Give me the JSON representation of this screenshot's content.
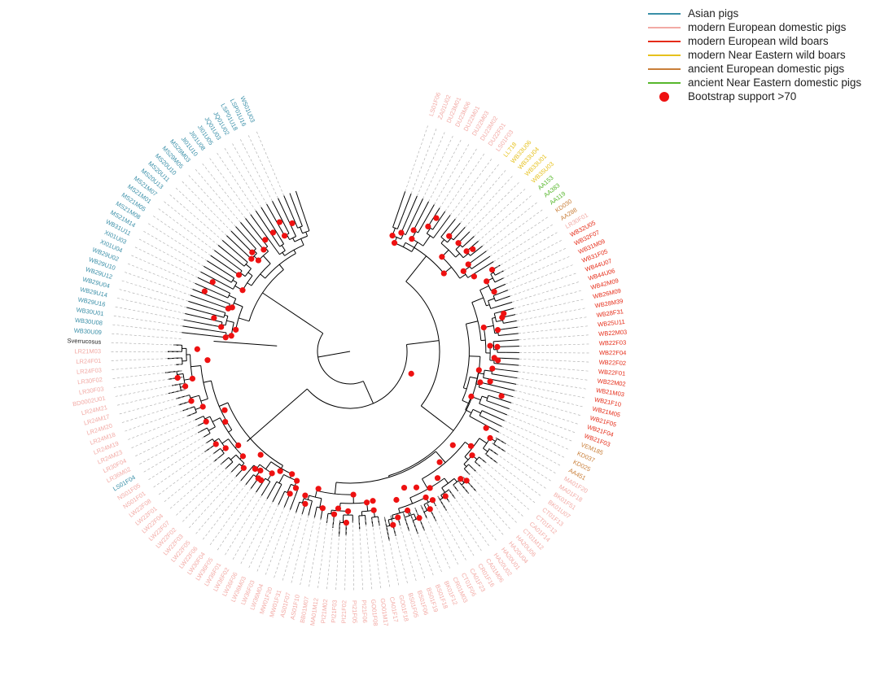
{
  "colors": {
    "asian": "#3a8fa8",
    "mod_eu_dom": "#f2aaa5",
    "mod_eu_wild": "#e52b17",
    "mod_ne_wild": "#e6c11d",
    "anc_eu_dom": "#c97f3a",
    "anc_ne_dom": "#57b72c",
    "outgroup": "#222222",
    "node": "#ee1111"
  },
  "legend": [
    {
      "label": "Asian pigs",
      "group": "asian",
      "kind": "line"
    },
    {
      "label": "modern European domestic pigs",
      "group": "mod_eu_dom",
      "kind": "line"
    },
    {
      "label": "modern European wild boars",
      "group": "mod_eu_wild",
      "kind": "line"
    },
    {
      "label": "modern Near Eastern wild boars",
      "group": "mod_ne_wild",
      "kind": "line"
    },
    {
      "label": "ancient European domestic pigs",
      "group": "anc_eu_dom",
      "kind": "line"
    },
    {
      "label": "ancient Near Eastern domestic pigs",
      "group": "anc_ne_dom",
      "kind": "line"
    },
    {
      "label": "Bootstrap support >70",
      "group": "node",
      "kind": "dot"
    }
  ],
  "leaves": [
    {
      "name": "LS01F06",
      "group": "mod_eu_dom"
    },
    {
      "name": "ZA01U02",
      "group": "mod_eu_dom"
    },
    {
      "name": "DU23M01",
      "group": "mod_eu_dom"
    },
    {
      "name": "DU23M06",
      "group": "mod_eu_dom"
    },
    {
      "name": "DU22M01",
      "group": "mod_eu_dom"
    },
    {
      "name": "DU22M03",
      "group": "mod_eu_dom"
    },
    {
      "name": "DU23M02",
      "group": "mod_eu_dom"
    },
    {
      "name": "DU22F01",
      "group": "mod_eu_dom"
    },
    {
      "name": "LS01F03",
      "group": "mod_eu_dom"
    },
    {
      "name": "LL718",
      "group": "mod_ne_wild"
    },
    {
      "name": "WB33U06",
      "group": "mod_ne_wild"
    },
    {
      "name": "WB33U04",
      "group": "mod_ne_wild"
    },
    {
      "name": "WB33U01",
      "group": "mod_ne_wild"
    },
    {
      "name": "WB35U03",
      "group": "mod_ne_wild"
    },
    {
      "name": "AA153",
      "group": "anc_ne_dom"
    },
    {
      "name": "AA383",
      "group": "anc_ne_dom"
    },
    {
      "name": "AA119",
      "group": "anc_ne_dom"
    },
    {
      "name": "KD030",
      "group": "anc_eu_dom"
    },
    {
      "name": "AA288",
      "group": "anc_eu_dom"
    },
    {
      "name": "LR30F01",
      "group": "mod_eu_dom"
    },
    {
      "name": "WB32U05",
      "group": "mod_eu_wild"
    },
    {
      "name": "WB32F07",
      "group": "mod_eu_wild"
    },
    {
      "name": "WB31M09",
      "group": "mod_eu_wild"
    },
    {
      "name": "WB31F05",
      "group": "mod_eu_wild"
    },
    {
      "name": "WB44U07",
      "group": "mod_eu_wild"
    },
    {
      "name": "WB44U06",
      "group": "mod_eu_wild"
    },
    {
      "name": "WB42M09",
      "group": "mod_eu_wild"
    },
    {
      "name": "WB26M09",
      "group": "mod_eu_wild"
    },
    {
      "name": "WB28M39",
      "group": "mod_eu_wild"
    },
    {
      "name": "WB28F31",
      "group": "mod_eu_wild"
    },
    {
      "name": "WB25U11",
      "group": "mod_eu_wild"
    },
    {
      "name": "WB22M03",
      "group": "mod_eu_wild"
    },
    {
      "name": "WB22F03",
      "group": "mod_eu_wild"
    },
    {
      "name": "WB22F04",
      "group": "mod_eu_wild"
    },
    {
      "name": "WB22F02",
      "group": "mod_eu_wild"
    },
    {
      "name": "WB22F01",
      "group": "mod_eu_wild"
    },
    {
      "name": "WB22M02",
      "group": "mod_eu_wild"
    },
    {
      "name": "WB21M03",
      "group": "mod_eu_wild"
    },
    {
      "name": "WB21F10",
      "group": "mod_eu_wild"
    },
    {
      "name": "WB21M05",
      "group": "mod_eu_wild"
    },
    {
      "name": "WB21F05",
      "group": "mod_eu_wild"
    },
    {
      "name": "WB21F04",
      "group": "mod_eu_wild"
    },
    {
      "name": "WB21F03",
      "group": "mod_eu_wild"
    },
    {
      "name": "VEM185",
      "group": "anc_eu_dom"
    },
    {
      "name": "KD037",
      "group": "anc_eu_dom"
    },
    {
      "name": "KD025",
      "group": "anc_eu_dom"
    },
    {
      "name": "AA451",
      "group": "anc_eu_dom"
    },
    {
      "name": "MA01F20",
      "group": "mod_eu_dom"
    },
    {
      "name": "MA01F18",
      "group": "mod_eu_dom"
    },
    {
      "name": "BK01F51",
      "group": "mod_eu_dom"
    },
    {
      "name": "BK01U07",
      "group": "mod_eu_dom"
    },
    {
      "name": "CT01F13",
      "group": "mod_eu_dom"
    },
    {
      "name": "CT01F12",
      "group": "mod_eu_dom"
    },
    {
      "name": "CA01F14",
      "group": "mod_eu_dom"
    },
    {
      "name": "CT01M12",
      "group": "mod_eu_dom"
    },
    {
      "name": "HA20U06",
      "group": "mod_eu_dom"
    },
    {
      "name": "HA20U04",
      "group": "mod_eu_dom"
    },
    {
      "name": "HA20U01",
      "group": "mod_eu_dom"
    },
    {
      "name": "HA20U02",
      "group": "mod_eu_dom"
    },
    {
      "name": "CA01M06",
      "group": "mod_eu_dom"
    },
    {
      "name": "CR01F16",
      "group": "mod_eu_dom"
    },
    {
      "name": "CA01F23",
      "group": "mod_eu_dom"
    },
    {
      "name": "CT01F06",
      "group": "mod_eu_dom"
    },
    {
      "name": "CR01M03",
      "group": "mod_eu_dom"
    },
    {
      "name": "BK01F12",
      "group": "mod_eu_dom"
    },
    {
      "name": "BS01F18",
      "group": "mod_eu_dom"
    },
    {
      "name": "BS01F19",
      "group": "mod_eu_dom"
    },
    {
      "name": "BS01F06",
      "group": "mod_eu_dom"
    },
    {
      "name": "BS01F05",
      "group": "mod_eu_dom"
    },
    {
      "name": "GO01F18",
      "group": "mod_eu_dom"
    },
    {
      "name": "CA01F17",
      "group": "mod_eu_dom"
    },
    {
      "name": "GO01M17",
      "group": "mod_eu_dom"
    },
    {
      "name": "GO01F08",
      "group": "mod_eu_dom"
    },
    {
      "name": "PI21F06",
      "group": "mod_eu_dom"
    },
    {
      "name": "PI21F05",
      "group": "mod_eu_dom"
    },
    {
      "name": "PI21F02",
      "group": "mod_eu_dom"
    },
    {
      "name": "PI21F03",
      "group": "mod_eu_dom"
    },
    {
      "name": "PI21M02",
      "group": "mod_eu_dom"
    },
    {
      "name": "MA01M12",
      "group": "mod_eu_dom"
    },
    {
      "name": "BB01M07",
      "group": "mod_eu_dom"
    },
    {
      "name": "AS01F10",
      "group": "mod_eu_dom"
    },
    {
      "name": "AS01F07",
      "group": "mod_eu_dom"
    },
    {
      "name": "MW01F31",
      "group": "mod_eu_dom"
    },
    {
      "name": "MW01F20",
      "group": "mod_eu_dom"
    },
    {
      "name": "LW36M04",
      "group": "mod_eu_dom"
    },
    {
      "name": "LW36F03",
      "group": "mod_eu_dom"
    },
    {
      "name": "LW36M03",
      "group": "mod_eu_dom"
    },
    {
      "name": "LW36F06",
      "group": "mod_eu_dom"
    },
    {
      "name": "LW36F02",
      "group": "mod_eu_dom"
    },
    {
      "name": "LW36F01",
      "group": "mod_eu_dom"
    },
    {
      "name": "LW36F05",
      "group": "mod_eu_dom"
    },
    {
      "name": "LW30F04",
      "group": "mod_eu_dom"
    },
    {
      "name": "LW22F06",
      "group": "mod_eu_dom"
    },
    {
      "name": "LW22F05",
      "group": "mod_eu_dom"
    },
    {
      "name": "LW22F03",
      "group": "mod_eu_dom"
    },
    {
      "name": "LW22F02",
      "group": "mod_eu_dom"
    },
    {
      "name": "LW22F07",
      "group": "mod_eu_dom"
    },
    {
      "name": "LW22F04",
      "group": "mod_eu_dom"
    },
    {
      "name": "LW22F01",
      "group": "mod_eu_dom"
    },
    {
      "name": "LW22F08",
      "group": "mod_eu_dom"
    },
    {
      "name": "NS01F01",
      "group": "mod_eu_dom"
    },
    {
      "name": "NS01F05",
      "group": "mod_eu_dom"
    },
    {
      "name": "LS01F04",
      "group": "asian"
    },
    {
      "name": "LR36M02",
      "group": "mod_eu_dom"
    },
    {
      "name": "LR30F04",
      "group": "mod_eu_dom"
    },
    {
      "name": "LR24M23",
      "group": "mod_eu_dom"
    },
    {
      "name": "LR24M19",
      "group": "mod_eu_dom"
    },
    {
      "name": "LR24M18",
      "group": "mod_eu_dom"
    },
    {
      "name": "LR24M20",
      "group": "mod_eu_dom"
    },
    {
      "name": "LR24M17",
      "group": "mod_eu_dom"
    },
    {
      "name": "LR24M21",
      "group": "mod_eu_dom"
    },
    {
      "name": "BD0002U01",
      "group": "mod_eu_dom"
    },
    {
      "name": "LR30F03",
      "group": "mod_eu_dom"
    },
    {
      "name": "LR30F02",
      "group": "mod_eu_dom"
    },
    {
      "name": "LR24F03",
      "group": "mod_eu_dom"
    },
    {
      "name": "LR24F01",
      "group": "mod_eu_dom"
    },
    {
      "name": "LR21M03",
      "group": "mod_eu_dom"
    },
    {
      "name": "Sverrucosus",
      "group": "outgroup"
    },
    {
      "name": "WB30U09",
      "group": "asian"
    },
    {
      "name": "WB30U08",
      "group": "asian"
    },
    {
      "name": "WB30U01",
      "group": "asian"
    },
    {
      "name": "WB29U16",
      "group": "asian"
    },
    {
      "name": "WB29U14",
      "group": "asian"
    },
    {
      "name": "WB29U04",
      "group": "asian"
    },
    {
      "name": "WB29U12",
      "group": "asian"
    },
    {
      "name": "WB29U10",
      "group": "asian"
    },
    {
      "name": "WB29U02",
      "group": "asian"
    },
    {
      "name": "XI01U04",
      "group": "asian"
    },
    {
      "name": "XI01U03",
      "group": "asian"
    },
    {
      "name": "WB31U11",
      "group": "asian"
    },
    {
      "name": "MS21M14",
      "group": "asian"
    },
    {
      "name": "MS21M08",
      "group": "asian"
    },
    {
      "name": "MS21M05",
      "group": "asian"
    },
    {
      "name": "MS21M01",
      "group": "asian"
    },
    {
      "name": "MS21M07",
      "group": "asian"
    },
    {
      "name": "MS20U13",
      "group": "asian"
    },
    {
      "name": "MS20U11",
      "group": "asian"
    },
    {
      "name": "MS20U10",
      "group": "asian"
    },
    {
      "name": "MS29M05",
      "group": "asian"
    },
    {
      "name": "MS29M03",
      "group": "asian"
    },
    {
      "name": "JI01U10",
      "group": "asian"
    },
    {
      "name": "JI01U08",
      "group": "asian"
    },
    {
      "name": "JI01U05",
      "group": "asian"
    },
    {
      "name": "JQ01U03",
      "group": "asian"
    },
    {
      "name": "JQ01U02",
      "group": "asian"
    },
    {
      "name": "LSP01U18",
      "group": "asian"
    },
    {
      "name": "LSP01U16",
      "group": "asian"
    },
    {
      "name": "WS01U03",
      "group": "asian"
    }
  ]
}
